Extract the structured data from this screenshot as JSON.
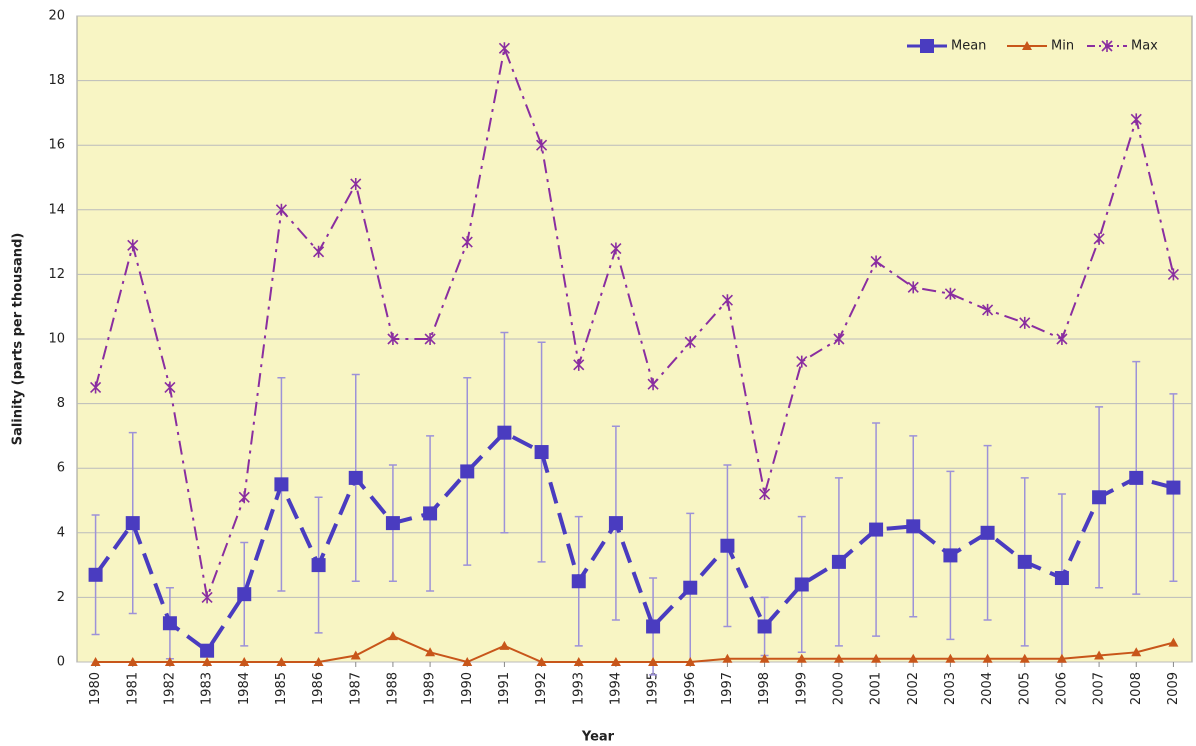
{
  "chart_data": {
    "type": "line",
    "x_label": "Year",
    "y_label": "Salinity (parts per thousand)",
    "categories": [
      "1980",
      "1981",
      "1982",
      "1983",
      "1984",
      "1985",
      "1986",
      "1987",
      "1988",
      "1989",
      "1990",
      "1991",
      "1992",
      "1993",
      "1994",
      "1995",
      "1996",
      "1997",
      "1998",
      "1999",
      "2000",
      "2001",
      "2002",
      "2003",
      "2004",
      "2005",
      "2006",
      "2007",
      "2008",
      "2009"
    ],
    "series": [
      {
        "name": "Mean",
        "color": "#4a3cc0",
        "marker": "square",
        "dash": "22,10",
        "values": [
          2.7,
          4.3,
          1.2,
          0.35,
          2.1,
          5.5,
          3.0,
          5.7,
          4.3,
          4.6,
          5.9,
          7.1,
          6.5,
          2.5,
          4.3,
          1.1,
          2.3,
          3.6,
          1.1,
          2.4,
          3.1,
          4.1,
          4.2,
          3.3,
          4.0,
          3.1,
          2.6,
          5.1,
          5.7,
          5.4
        ],
        "errors": [
          1.85,
          2.8,
          1.1,
          0.1,
          1.6,
          3.3,
          2.1,
          3.2,
          1.8,
          2.4,
          2.9,
          3.1,
          3.4,
          2.0,
          3.0,
          1.5,
          2.3,
          2.5,
          0.9,
          2.1,
          2.6,
          3.3,
          2.8,
          2.6,
          2.7,
          2.6,
          2.6,
          2.8,
          3.6,
          2.9
        ]
      },
      {
        "name": "Min",
        "color": "#c8561a",
        "marker": "triangle",
        "dash": "",
        "values": [
          0,
          0,
          0,
          0,
          0,
          0,
          0,
          0.2,
          0.8,
          0.3,
          0,
          0.5,
          0,
          0,
          0,
          0,
          0,
          0.1,
          0.1,
          0.1,
          0.1,
          0.1,
          0.1,
          0.1,
          0.1,
          0.1,
          0.1,
          0.2,
          0.3,
          0.6
        ]
      },
      {
        "name": "Max",
        "color": "#8a2ea0",
        "marker": "star",
        "dash": "14,6,3,6",
        "values": [
          8.5,
          12.9,
          8.5,
          2.0,
          5.1,
          14.0,
          12.7,
          14.8,
          10.0,
          10.0,
          13.0,
          19.0,
          16.0,
          9.2,
          12.8,
          8.6,
          9.9,
          11.2,
          5.2,
          9.3,
          10.0,
          12.4,
          11.6,
          11.4,
          10.9,
          10.5,
          10.0,
          13.1,
          16.8,
          12.0
        ]
      }
    ],
    "error_color": "#9d92d8",
    "ylim": [
      0,
      20
    ],
    "yticks": [
      0,
      2,
      4,
      6,
      8,
      10,
      12,
      14,
      16,
      18,
      20
    ],
    "grid": true,
    "legend": "top-right",
    "plot_background": "#f8f5c4"
  }
}
